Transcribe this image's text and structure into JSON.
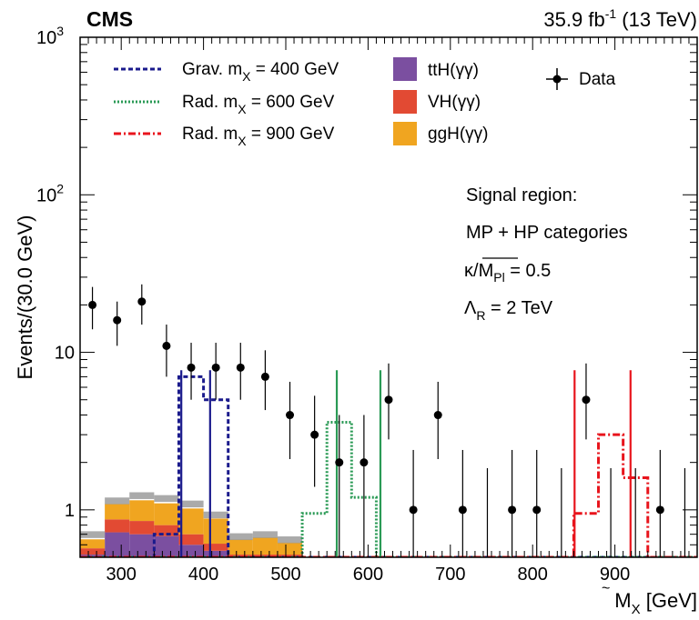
{
  "header": {
    "experiment": "CMS",
    "lumi": "35.9 fb",
    "lumi_sup": "-1",
    "energy": " (13 TeV)"
  },
  "chart_data": {
    "type": "bar",
    "ylabel": "Events/(30.0 GeV)",
    "xlabel_main": "M",
    "xlabel_sub": "X",
    "xlabel_unit": " [GeV]",
    "xlim": [
      250,
      1000
    ],
    "ylim": [
      0.5,
      1000
    ],
    "yscale": "log",
    "x_tick_labels": [
      "300",
      "400",
      "500",
      "600",
      "700",
      "800",
      "900"
    ],
    "y_tick_labels": [
      "1",
      "10",
      "10",
      "10"
    ],
    "y_tick_sup": [
      "",
      "",
      "2",
      "3"
    ],
    "bin_edges": [
      250,
      280,
      310,
      340,
      370,
      400,
      430,
      460,
      490,
      520
    ],
    "stack_series": [
      {
        "name": "ttH(γγ)",
        "color": "#7b4fa0",
        "values": [
          0.52,
          0.72,
          0.7,
          0.68,
          0.6,
          0.55,
          0.5,
          0.5,
          0.5
        ]
      },
      {
        "name": "VH(γγ)",
        "color": "#e24a33",
        "values": [
          0.05,
          0.15,
          0.15,
          0.12,
          0.1,
          0.06,
          0.02,
          0.02,
          0.02
        ]
      },
      {
        "name": "ggH(γγ)",
        "color": "#f0a520",
        "values": [
          0.08,
          0.22,
          0.3,
          0.3,
          0.32,
          0.27,
          0.13,
          0.15,
          0.1
        ]
      }
    ],
    "band_values": [
      0.69,
      1.13,
      1.22,
      1.17,
      1.08,
      0.92,
      0.67,
      0.69,
      0.64
    ],
    "data_points": [
      {
        "x": 265,
        "y": 20,
        "lo": 14,
        "hi": 26
      },
      {
        "x": 295,
        "y": 16,
        "lo": 11,
        "hi": 21
      },
      {
        "x": 325,
        "y": 21,
        "lo": 15,
        "hi": 27
      },
      {
        "x": 355,
        "y": 11,
        "lo": 7,
        "hi": 15
      },
      {
        "x": 385,
        "y": 8,
        "lo": 5,
        "hi": 11.5
      },
      {
        "x": 415,
        "y": 8,
        "lo": 5,
        "hi": 11.5
      },
      {
        "x": 445,
        "y": 8,
        "lo": 5,
        "hi": 11.5
      },
      {
        "x": 475,
        "y": 7,
        "lo": 4.3,
        "hi": 10.3
      },
      {
        "x": 505,
        "y": 4,
        "lo": 2.1,
        "hi": 6.5
      },
      {
        "x": 535,
        "y": 3,
        "lo": 1.4,
        "hi": 5.3
      },
      {
        "x": 565,
        "y": 2,
        "lo": 0.5,
        "hi": 4.0
      },
      {
        "x": 595,
        "y": 2,
        "lo": 0.5,
        "hi": 4.0
      },
      {
        "x": 625,
        "y": 5,
        "lo": 2.8,
        "hi": 8.5
      },
      {
        "x": 655,
        "y": 1,
        "lo": 0.5,
        "hi": 2.4
      },
      {
        "x": 685,
        "y": 4,
        "lo": 2.1,
        "hi": 6.5
      },
      {
        "x": 715,
        "y": 1,
        "lo": 0.5,
        "hi": 2.4
      },
      {
        "x": 775,
        "y": 1,
        "lo": 0.5,
        "hi": 2.4
      },
      {
        "x": 805,
        "y": 1,
        "lo": 0.5,
        "hi": 2.4
      },
      {
        "x": 865,
        "y": 5,
        "lo": 2.8,
        "hi": 8.5
      },
      {
        "x": 955,
        "y": 1,
        "lo": 0.5,
        "hi": 2.4
      }
    ],
    "empty_bin_error_x": [
      745,
      835,
      895,
      925,
      985
    ],
    "empty_bin_error_hi": 1.84,
    "signals": [
      {
        "name": "Grav. m",
        "sub": "X",
        "mass": " = 400 GeV",
        "color": "#1a1a8c",
        "dash": "5,3",
        "edges": [
          250,
          340,
          370,
          400,
          430,
          460,
          1000
        ],
        "values": [
          0.5,
          0.7,
          7,
          5,
          0.5,
          0.5
        ]
      },
      {
        "name": "Rad. m",
        "sub": "X",
        "mass": " = 600 GeV",
        "color": "#2a9a55",
        "dash": "2,2",
        "edges": [
          250,
          520,
          550,
          580,
          610,
          640,
          1000
        ],
        "values": [
          0.5,
          0.95,
          3.6,
          1.2,
          0.5,
          0.5
        ]
      },
      {
        "name": "Rad. m",
        "sub": "X",
        "mass": " = 900 GeV",
        "color": "#e8141c",
        "dash": "8,3,2,3",
        "edges": [
          250,
          850,
          880,
          910,
          940,
          1000
        ],
        "values": [
          0.5,
          0.95,
          3.0,
          1.6,
          0.5
        ]
      }
    ],
    "window_lines": [
      {
        "x": 373,
        "color": "#1a1a8c"
      },
      {
        "x": 408,
        "color": "#1a1a8c"
      },
      {
        "x": 562,
        "color": "#2a9a55"
      },
      {
        "x": 615,
        "color": "#2a9a55"
      },
      {
        "x": 851,
        "color": "#e8141c"
      },
      {
        "x": 919,
        "color": "#e8141c"
      }
    ],
    "legend_data": "Data",
    "annotations": {
      "line1": "Signal region:",
      "line2": "MP + HP categories",
      "kappa": "κ/",
      "mpl": "M",
      "mpl_sub": "Pl",
      "kappa_val": " = 0.5",
      "lambda": "Λ",
      "lambda_sub": "R",
      "lambda_val": " = 2 TeV"
    }
  }
}
